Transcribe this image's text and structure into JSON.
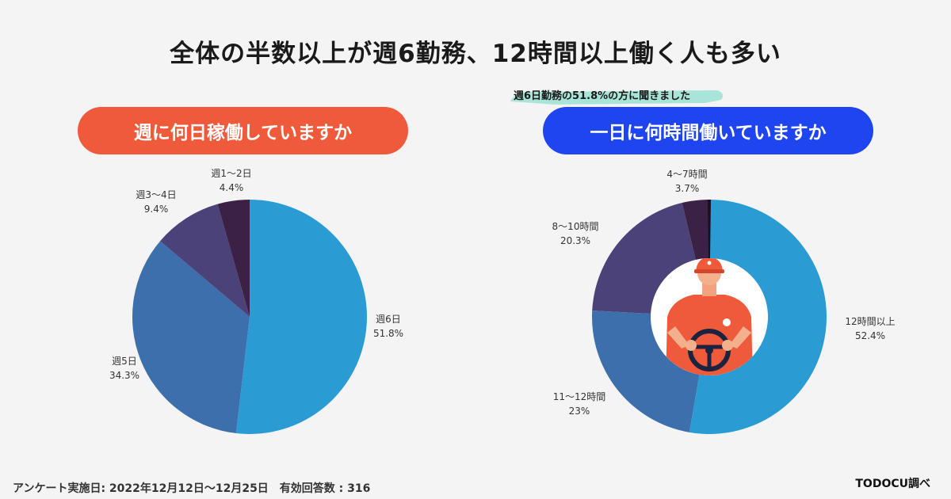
{
  "title": "全体の半数以上が週6勤務、12時間以上働く人も多い",
  "note": "週6日勤務の51.8%の方に聞きました",
  "footer": "アンケート実施日: 2022年12月12日〜12月25日　有効回答数 : 316",
  "source": "TODOCU調べ",
  "colors": {
    "c1": "#2b9bd3",
    "c2": "#3d6fac",
    "c3": "#4b4279",
    "c4": "#3b2244",
    "c5": "#1c1020",
    "accent_left": "#ef5a3a",
    "accent_right": "#1f45f0",
    "highlight": "#8fe0cf"
  },
  "chart_data": [
    {
      "type": "pie",
      "title": "週に何日稼働していますか",
      "categories": [
        "週6日",
        "週5日",
        "週3〜4日",
        "週1〜2日"
      ],
      "values": [
        51.8,
        34.3,
        9.4,
        4.4
      ],
      "value_labels": [
        "51.8%",
        "34.3%",
        "9.4%",
        "4.4%"
      ]
    },
    {
      "type": "pie",
      "title": "一日に何時間働いていますか",
      "categories": [
        "12時間以上",
        "11〜12時間",
        "8〜10時間",
        "4〜7時間"
      ],
      "values": [
        52.4,
        23,
        20.3,
        3.7
      ],
      "value_labels": [
        "52.4%",
        "23%",
        "20.3%",
        "3.7%"
      ]
    }
  ]
}
